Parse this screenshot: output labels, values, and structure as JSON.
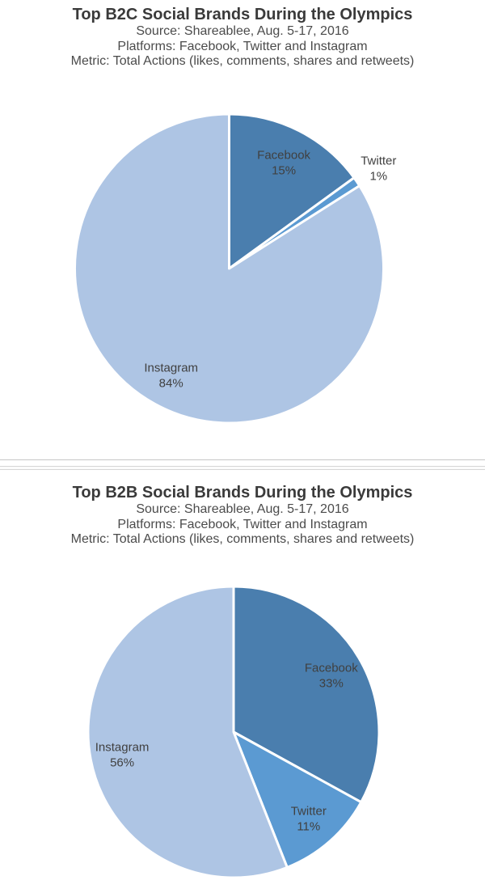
{
  "chart_data": [
    {
      "type": "pie",
      "title": "Top B2C Social Brands During the Olympics",
      "source_line": "Source: Shareablee, Aug. 5-17, 2016",
      "platforms_line": "Platforms: Facebook, Twitter and Instagram",
      "metric_line": "Metric: Total Actions (likes, comments, shares and retweets)",
      "unit": "%",
      "start_angle_deg": 0,
      "direction": "clockwise",
      "slice_border_color": "#ffffff",
      "label_color": "#404040",
      "legend": "none",
      "slices": [
        {
          "label": "Facebook",
          "value": 15,
          "color": "#4a7eae",
          "label_placement": "inside"
        },
        {
          "label": "Twitter",
          "value": 1,
          "color": "#5b9ad2",
          "label_placement": "outside"
        },
        {
          "label": "Instagram",
          "value": 84,
          "color": "#aec5e4",
          "label_placement": "inside"
        }
      ]
    },
    {
      "type": "pie",
      "title": "Top B2B Social Brands During the Olympics",
      "source_line": "Source: Shareablee, Aug. 5-17, 2016",
      "platforms_line": "Platforms: Facebook, Twitter and Instagram",
      "metric_line": "Metric: Total Actions (likes, comments, shares and retweets)",
      "unit": "%",
      "start_angle_deg": 0,
      "direction": "clockwise",
      "slice_border_color": "#ffffff",
      "label_color": "#404040",
      "legend": "none",
      "slices": [
        {
          "label": "Facebook",
          "value": 33,
          "color": "#4a7eae",
          "label_placement": "inside"
        },
        {
          "label": "Twitter",
          "value": 11,
          "color": "#5b9ad2",
          "label_placement": "inside"
        },
        {
          "label": "Instagram",
          "value": 56,
          "color": "#aec5e4",
          "label_placement": "inside"
        }
      ]
    }
  ]
}
